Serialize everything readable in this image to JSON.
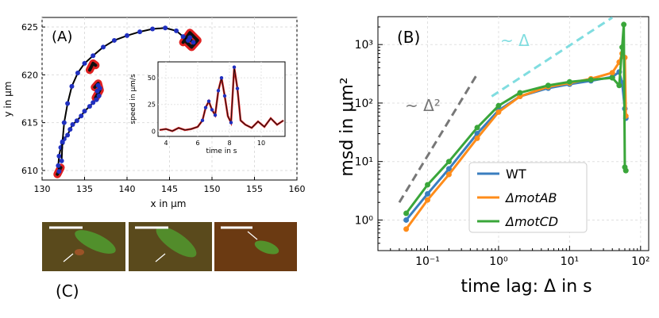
{
  "chart_data": [
    {
      "panel": "(A)",
      "type": "scatter",
      "xlabel": "x in μm",
      "ylabel": "y in μm",
      "xlim": [
        130,
        160
      ],
      "ylim": [
        609,
        626
      ],
      "xticks": [
        130,
        135,
        140,
        145,
        150,
        155,
        160
      ],
      "yticks": [
        610,
        615,
        620,
        625
      ],
      "grid": true,
      "trajectory": {
        "x": [
          132.0,
          131.9,
          132.0,
          132.2,
          132.4,
          132.6,
          133.0,
          133.3,
          133.6,
          134.1,
          134.6,
          135.0,
          135.6,
          136.0,
          136.4,
          136.7,
          136.5,
          136.8,
          136.6
        ],
        "y": [
          609.9,
          610.5,
          611.5,
          612.4,
          612.9,
          613.3,
          613.7,
          614.3,
          614.8,
          615.2,
          615.7,
          616.2,
          616.7,
          617.1,
          617.4,
          617.8,
          618.3,
          618.6,
          618.9
        ]
      },
      "trajectory2": {
        "x": [
          132.3,
          132.4,
          132.6,
          133.0,
          133.5,
          134.2,
          135.0,
          136.0,
          137.2,
          138.5,
          140.0,
          141.5,
          143.0,
          144.5,
          145.8,
          146.6,
          147.2,
          147.8,
          147.4
        ],
        "y": [
          611.0,
          613.0,
          615.0,
          617.0,
          618.8,
          620.2,
          621.2,
          622.0,
          622.9,
          623.6,
          624.1,
          624.5,
          624.8,
          624.9,
          624.6,
          624.0,
          623.6,
          623.4,
          623.9
        ]
      },
      "run_segments": [
        {
          "x": [
            135.6,
            136.0,
            136.3
          ],
          "y": [
            620.5,
            621.2,
            621.0
          ]
        },
        {
          "x": [
            136.3,
            136.8,
            136.6,
            136.2
          ],
          "y": [
            617.6,
            618.4,
            619.1,
            618.7
          ]
        },
        {
          "x": [
            146.6,
            147.4,
            148.3,
            147.6,
            146.9
          ],
          "y": [
            623.4,
            624.4,
            623.6,
            622.9,
            623.5
          ]
        },
        {
          "x": [
            131.8,
            132.2
          ],
          "y": [
            609.6,
            610.3
          ]
        }
      ]
    },
    {
      "panel": "(A) inset",
      "type": "line",
      "xlabel": "time in s",
      "ylabel": "speed in μm/s",
      "xlim": [
        3.5,
        11.5
      ],
      "ylim": [
        -5,
        65
      ],
      "xticks": [
        4,
        6,
        8,
        10
      ],
      "yticks": [
        0,
        25,
        50
      ],
      "t": [
        3.6,
        4.0,
        4.4,
        4.8,
        5.2,
        5.6,
        6.0,
        6.3,
        6.5,
        6.7,
        6.9,
        7.1,
        7.3,
        7.5,
        7.7,
        7.9,
        8.1,
        8.3,
        8.5,
        8.7,
        9.0,
        9.4,
        9.8,
        10.2,
        10.6,
        11.0,
        11.4
      ],
      "speed": [
        1,
        2,
        0,
        3,
        1,
        2,
        4,
        10,
        22,
        28,
        20,
        15,
        38,
        50,
        33,
        14,
        8,
        60,
        40,
        10,
        6,
        3,
        9,
        4,
        12,
        6,
        10
      ],
      "blue_points_t": [
        6.3,
        6.5,
        6.7,
        6.9,
        7.1,
        7.3,
        7.5,
        7.7,
        8.1,
        8.3,
        8.5
      ],
      "blue_points_v": [
        10,
        22,
        28,
        20,
        15,
        38,
        50,
        33,
        8,
        60,
        40
      ]
    },
    {
      "panel": "(B)",
      "type": "line",
      "scale": "log-log",
      "xlabel": "time lag: Δ in s",
      "ylabel": "msd in μm²",
      "xlim": [
        0.02,
        130
      ],
      "ylim": [
        0.3,
        3000
      ],
      "xticks": [
        "10⁻¹",
        "10⁰",
        "10¹",
        "10²"
      ],
      "yticks": [
        "10⁰",
        "10¹",
        "10²",
        "10³"
      ],
      "legend": "bottom-center",
      "series": [
        {
          "name": "WT",
          "color": "#3a7ebf",
          "x": [
            0.05,
            0.1,
            0.2,
            0.5,
            1,
            2,
            5,
            10,
            20,
            40,
            50,
            55,
            60,
            62
          ],
          "y": [
            1.0,
            2.8,
            7.5,
            30,
            75,
            130,
            180,
            210,
            240,
            280,
            340,
            220,
            80,
            55
          ]
        },
        {
          "name": "ΔmotAB",
          "color": "#ff8c1a",
          "x": [
            0.05,
            0.1,
            0.2,
            0.5,
            1,
            2,
            5,
            10,
            20,
            40,
            50,
            55,
            60,
            62
          ],
          "y": [
            0.7,
            2.2,
            6.0,
            25,
            70,
            130,
            190,
            220,
            260,
            330,
            500,
            700,
            600,
            60
          ]
        },
        {
          "name": "ΔmotCD",
          "color": "#3aa63a",
          "x": [
            0.05,
            0.1,
            0.2,
            0.5,
            1,
            2,
            5,
            10,
            20,
            40,
            50,
            55,
            58,
            60,
            62
          ],
          "y": [
            1.3,
            4.0,
            10,
            38,
            90,
            150,
            200,
            230,
            250,
            270,
            200,
            900,
            2200,
            8,
            7
          ]
        }
      ],
      "guides": [
        {
          "label": "~ Δ²",
          "color": "#777777",
          "slope": 2
        },
        {
          "label": "~ Δ",
          "color": "#80dde0",
          "slope": 1
        }
      ]
    }
  ],
  "panel_c": {
    "label": "(C)",
    "images": [
      "fluorescence-frame-1",
      "fluorescence-frame-2",
      "fluorescence-frame-3"
    ]
  }
}
